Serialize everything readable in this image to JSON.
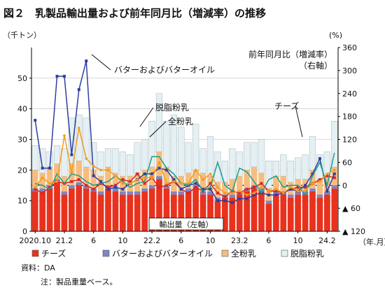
{
  "figure_title": "図２　乳製品輸出量および前年同月比（増減率）の推移",
  "source_note": "資料：DA",
  "note": "注：製品重量ベース。",
  "chart_data": {
    "type": "bar+line",
    "left_axis": {
      "unit_label": "（千トン）",
      "range": [
        0,
        60
      ],
      "ticks": [
        0,
        10,
        20,
        30,
        40,
        50
      ]
    },
    "right_axis": {
      "unit_label": "(%)",
      "range": [
        -120,
        360
      ],
      "tick_values": [
        360,
        300,
        240,
        180,
        120,
        60,
        0,
        -60,
        -120
      ],
      "tick_labels": [
        "360",
        "300",
        "240",
        "180",
        "120",
        "60",
        "0",
        "▲ 60",
        "▲ 120"
      ],
      "title_line1": "前年同月比（増減率）",
      "title_line2": "（右軸）"
    },
    "x_tick_labels": [
      {
        "index": 0,
        "label": "2020.10"
      },
      {
        "index": 4,
        "label": "21.2"
      },
      {
        "index": 8,
        "label": "6"
      },
      {
        "index": 12,
        "label": "10"
      },
      {
        "index": 16,
        "label": "22.2"
      },
      {
        "index": 20,
        "label": "6"
      },
      {
        "index": 24,
        "label": "10"
      },
      {
        "index": 28,
        "label": "23.2"
      },
      {
        "index": 32,
        "label": "6"
      },
      {
        "index": 36,
        "label": "10"
      },
      {
        "index": 40,
        "label": "24.2"
      }
    ],
    "x_axis_unit": "（年.月）",
    "bar_axis_label": "輸出量（左軸）",
    "bar_series": [
      {
        "name": "チーズ",
        "color": "#e8321e",
        "values": [
          13,
          13,
          14,
          16,
          12,
          14,
          15,
          14,
          13,
          12,
          14,
          13,
          12,
          12,
          12,
          13,
          14,
          17,
          14,
          12,
          12,
          13,
          14,
          12,
          12,
          10,
          11,
          11,
          12,
          13,
          14,
          13,
          9,
          12,
          12,
          11,
          12,
          12,
          13,
          11,
          12,
          14
        ]
      },
      {
        "name": "バターおよびバターオイル",
        "color": "#7d86c4",
        "values": [
          1,
          1,
          1,
          1,
          1,
          1,
          1,
          1,
          1,
          1,
          1,
          1,
          1,
          1,
          1,
          1,
          1,
          1,
          1,
          1,
          1,
          1,
          1,
          1,
          1,
          1,
          1,
          1,
          1,
          1,
          1,
          1,
          1,
          1,
          1,
          1,
          1,
          1,
          1,
          1,
          1,
          1
        ]
      },
      {
        "name": "全粉乳",
        "color": "#f5be80",
        "values": [
          6,
          5,
          6,
          5,
          5,
          7,
          7,
          6,
          6,
          5,
          6,
          5,
          5,
          5,
          6,
          6,
          6,
          8,
          6,
          5,
          5,
          5,
          5,
          6,
          5,
          5,
          4,
          5,
          5,
          6,
          6,
          5,
          4,
          5,
          5,
          4,
          4,
          4,
          6,
          5,
          5,
          6
        ]
      },
      {
        "name": "脱脂粉乳",
        "color": "#e4f0f3",
        "values": [
          8,
          8,
          5,
          6,
          9,
          15,
          15,
          16,
          9,
          8,
          6,
          8,
          8,
          7,
          10,
          10,
          15,
          19,
          15,
          20,
          16,
          10,
          15,
          8,
          13,
          10,
          7,
          10,
          8,
          9,
          8,
          11,
          9,
          5,
          7,
          7,
          7,
          8,
          11,
          8,
          8,
          15
        ]
      }
    ],
    "line_series": [
      {
        "name": "チーズ",
        "color": "#d62728",
        "marker": "square",
        "values": [
          -10,
          -20,
          -5,
          10,
          5,
          10,
          15,
          0,
          -10,
          5,
          -5,
          0,
          15,
          10,
          30,
          5,
          20,
          -5,
          0,
          10,
          -10,
          -20,
          -5,
          -15,
          5,
          -20,
          -30,
          -15,
          -20,
          -10,
          -5,
          5,
          -15,
          -15,
          -20,
          -10,
          -5,
          -5,
          5,
          15,
          25,
          20
        ]
      },
      {
        "name": "バターおよびバターオイル",
        "color": "#2f3f9e",
        "marker": "square",
        "values": [
          170,
          45,
          45,
          285,
          285,
          80,
          250,
          325,
          25,
          10,
          -10,
          -5,
          -10,
          5,
          15,
          30,
          30,
          45,
          40,
          15,
          -10,
          0,
          5,
          -10,
          -10,
          -40,
          -40,
          -45,
          -35,
          -35,
          -25,
          -20,
          -25,
          -25,
          -20,
          -10,
          -15,
          0,
          30,
          70,
          -15,
          30
        ]
      },
      {
        "name": "脱脂粉乳",
        "color": "#1a9e8f",
        "marker": "none",
        "values": [
          5,
          0,
          -10,
          30,
          5,
          30,
          25,
          10,
          0,
          5,
          10,
          25,
          10,
          -5,
          5,
          10,
          75,
          75,
          45,
          30,
          5,
          0,
          15,
          -15,
          -5,
          60,
          0,
          -15,
          45,
          35,
          10,
          -20,
          15,
          25,
          -5,
          0,
          0,
          -25,
          25,
          60,
          0,
          85
        ]
      },
      {
        "name": "全粉乳",
        "color": "#f29b1d",
        "marker": "circle",
        "values": [
          -5,
          20,
          5,
          10,
          130,
          35,
          150,
          70,
          50,
          40,
          40,
          25,
          5,
          5,
          15,
          20,
          20,
          60,
          5,
          10,
          5,
          5,
          40,
          15,
          30,
          -5,
          -20,
          -20,
          -15,
          -25,
          -20,
          -5,
          -15,
          -10,
          -20,
          -5,
          -15,
          -15,
          5,
          10,
          30,
          40
        ]
      }
    ],
    "line_annotations": [
      {
        "text": "バターおよびバターオイル",
        "series": "バターおよびバターオイル"
      },
      {
        "text": "脱脂粉乳",
        "series": "脱脂粉乳"
      },
      {
        "text": "全粉乳",
        "series": "全粉乳"
      },
      {
        "text": "チーズ",
        "series": "チーズ"
      }
    ],
    "legend": [
      {
        "name": "チーズ",
        "color": "#e8321e"
      },
      {
        "name": "バターおよびバターオイル",
        "color": "#7d86c4"
      },
      {
        "name": "全粉乳",
        "color": "#f5be80"
      },
      {
        "name": "脱脂粉乳",
        "color": "#e4f0f3"
      }
    ]
  }
}
